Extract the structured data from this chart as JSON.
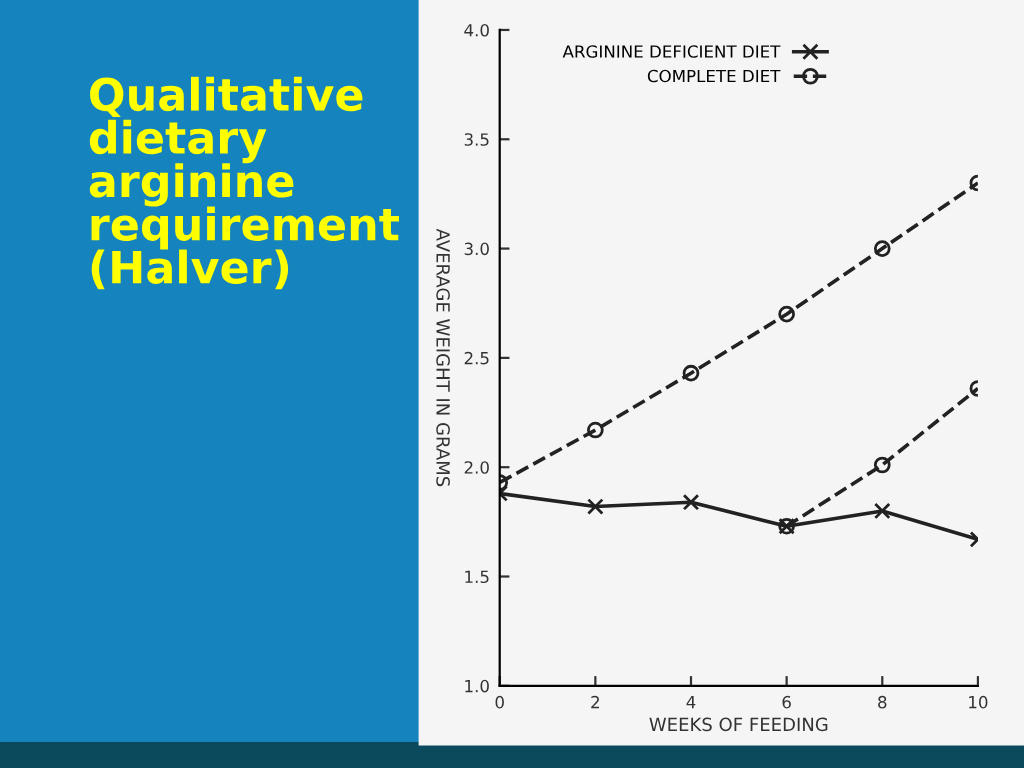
{
  "chart_data": {
    "type": "line",
    "title": "Qualitative dietary arginine requirement (Halver)",
    "xlabel": "WEEKS OF FEEDING",
    "ylabel": "AVERAGE WEIGHT IN GRAMS",
    "xlim": [
      0,
      10
    ],
    "xticks": [
      0,
      2,
      4,
      6,
      8,
      10
    ],
    "ylim": [
      1.0,
      4.0
    ],
    "yticks": [
      {
        "value": 1.0,
        "label": "1.0"
      },
      {
        "value": 1.5,
        "label": "1.5"
      },
      {
        "value": 2.0,
        "label": "2.0"
      },
      {
        "value": 2.5,
        "label": "2.5"
      },
      {
        "value": 3.0,
        "label": "3.0"
      },
      {
        "value": 3.5,
        "label": "3.5"
      },
      {
        "value": 4.0,
        "label": "4.0"
      }
    ],
    "grid": false,
    "legend": "top left",
    "series": [
      {
        "name": "ARGININE DEFICIENT DIET",
        "color": "#222222",
        "marker": "cross",
        "line_style": "solid",
        "x": [
          0,
          2,
          4,
          6,
          8,
          10
        ],
        "values": [
          1.88,
          1.82,
          1.84,
          1.73,
          1.8,
          1.67
        ]
      },
      {
        "name": "COMPLETE DIET",
        "color": "#222222",
        "marker": "circle",
        "line_style": "dashed",
        "x": [
          0,
          2,
          4,
          6,
          8,
          10
        ],
        "values": [
          1.93,
          2.17,
          2.43,
          2.7,
          3.0,
          3.3
        ]
      },
      {
        "color": "#222222",
        "marker": "circle",
        "line_style": "dashed",
        "x": [
          6,
          8,
          10
        ],
        "values": [
          1.73,
          2.01,
          2.36
        ]
      }
    ]
  }
}
